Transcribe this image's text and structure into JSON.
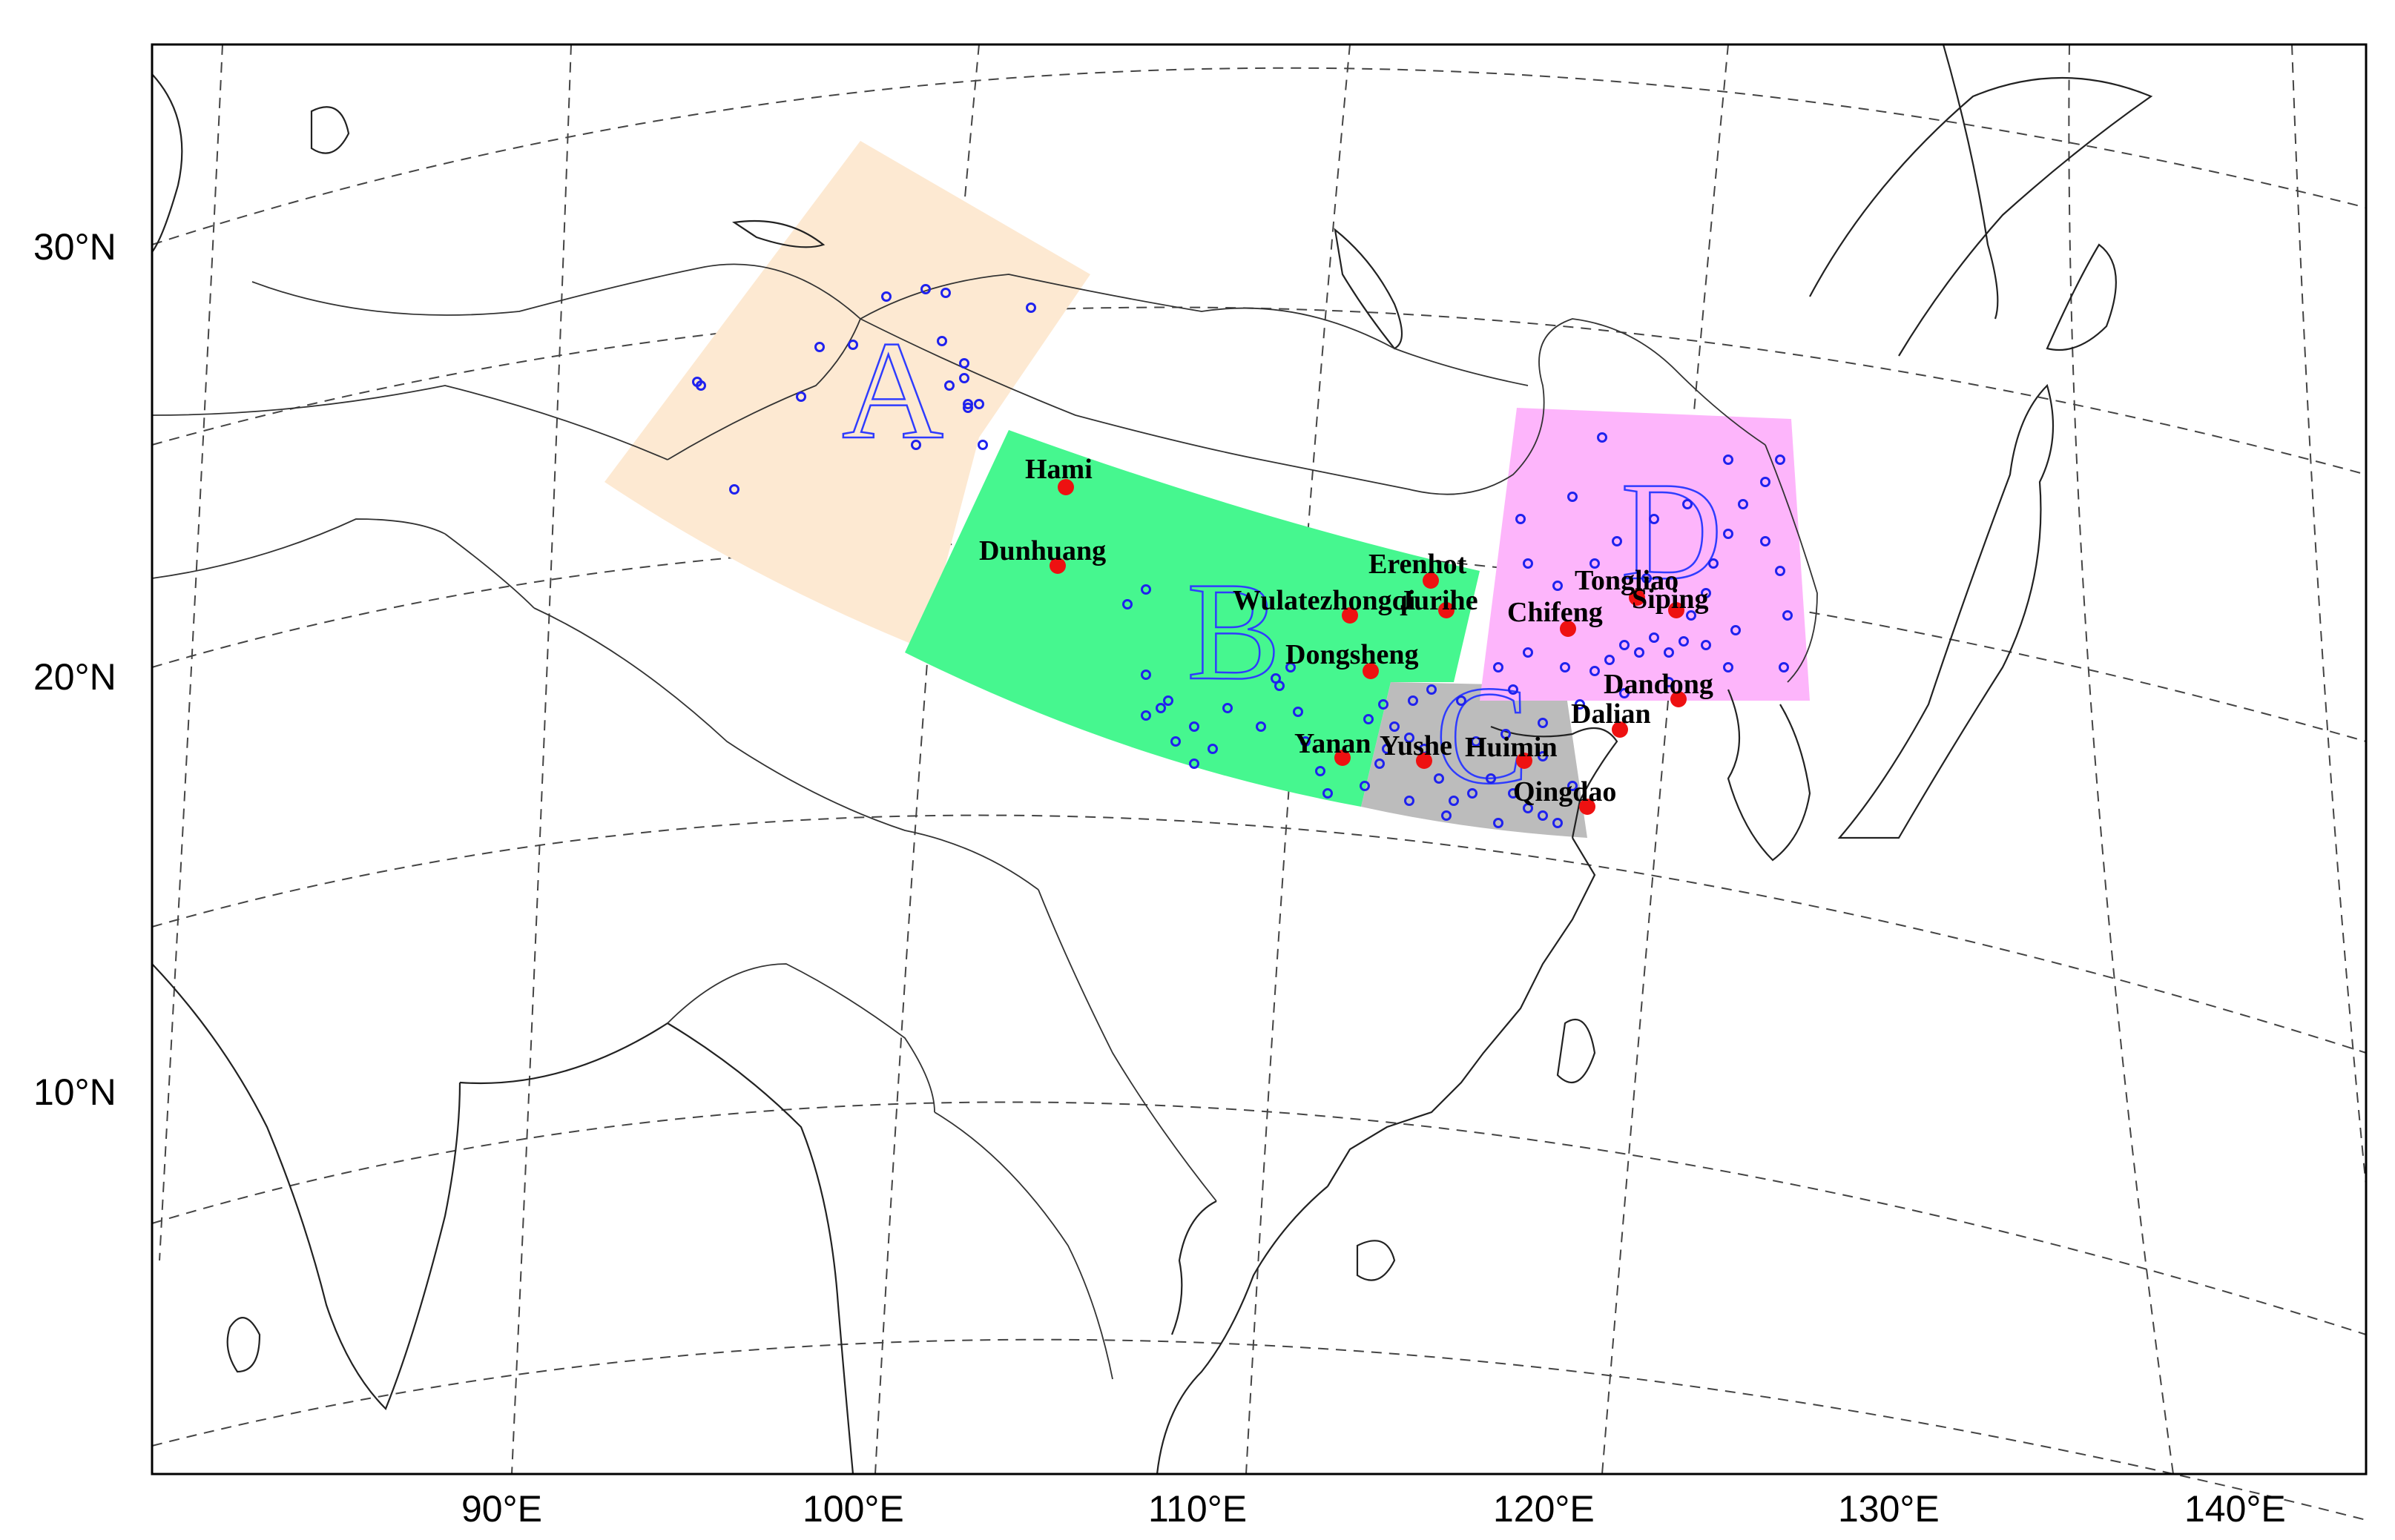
{
  "colors": {
    "region_A": "#fde9d2",
    "region_B": "#46f78f",
    "region_C": "#bcbcbc",
    "region_D": "#fdb5fb",
    "city_dot": "#ee1111",
    "station_ring": "#1f22ee",
    "region_letter": "#2f3cff"
  },
  "axes": {
    "lat_labels": [
      "30°N",
      "20°N",
      "10°N"
    ],
    "lon_labels": [
      "90°E",
      "100°E",
      "110°E",
      "120°E",
      "130°E",
      "140°E"
    ]
  },
  "regions": [
    {
      "id": "A",
      "label": "A"
    },
    {
      "id": "B",
      "label": "B"
    },
    {
      "id": "C",
      "label": "C"
    },
    {
      "id": "D",
      "label": "D"
    }
  ],
  "cities": [
    {
      "name": "Hami"
    },
    {
      "name": "Dunhuang"
    },
    {
      "name": "Erenhot"
    },
    {
      "name": "Wulatezhongqi"
    },
    {
      "name": "Jurihe"
    },
    {
      "name": "Dongsheng"
    },
    {
      "name": "Chifeng"
    },
    {
      "name": "Tongliao"
    },
    {
      "name": "Siping"
    },
    {
      "name": "Dandong"
    },
    {
      "name": "Dalian"
    },
    {
      "name": "Yanan"
    },
    {
      "name": "Yushe"
    },
    {
      "name": "Huimin"
    },
    {
      "name": "Qingdao"
    }
  ]
}
